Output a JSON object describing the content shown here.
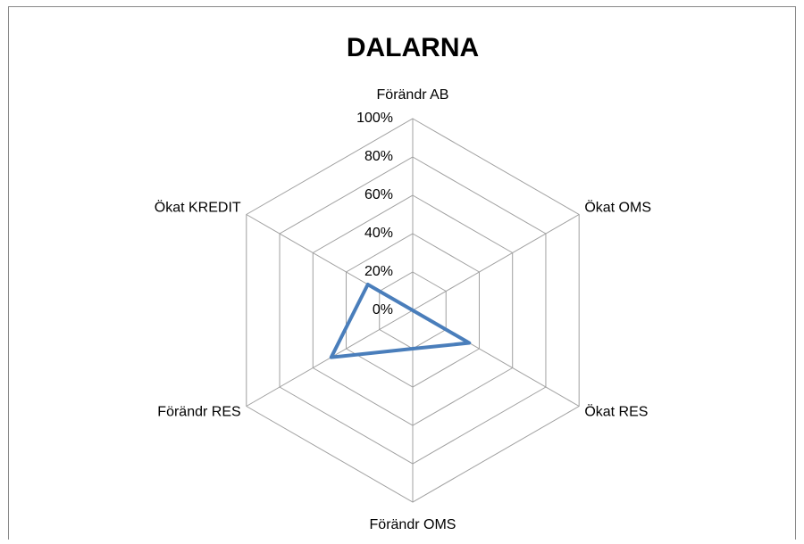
{
  "chart_data": {
    "type": "radar",
    "title": "DALARNA",
    "categories": [
      "Förändr AB",
      "Ökat OMS",
      "Ökat RES",
      "Förändr OMS",
      "Förändr RES",
      "Ökat KREDIT"
    ],
    "series": [
      {
        "name": "DALARNA",
        "color": "#4a7ebb",
        "values": [
          0,
          0,
          34,
          20,
          49,
          27
        ]
      }
    ],
    "rlim": [
      0,
      100
    ],
    "rticks": [
      {
        "value": 0,
        "label": "0%"
      },
      {
        "value": 20,
        "label": "20%"
      },
      {
        "value": 40,
        "label": "40%"
      },
      {
        "value": 60,
        "label": "60%"
      },
      {
        "value": 80,
        "label": "80%"
      },
      {
        "value": 100,
        "label": "100%"
      }
    ],
    "grid": true
  }
}
